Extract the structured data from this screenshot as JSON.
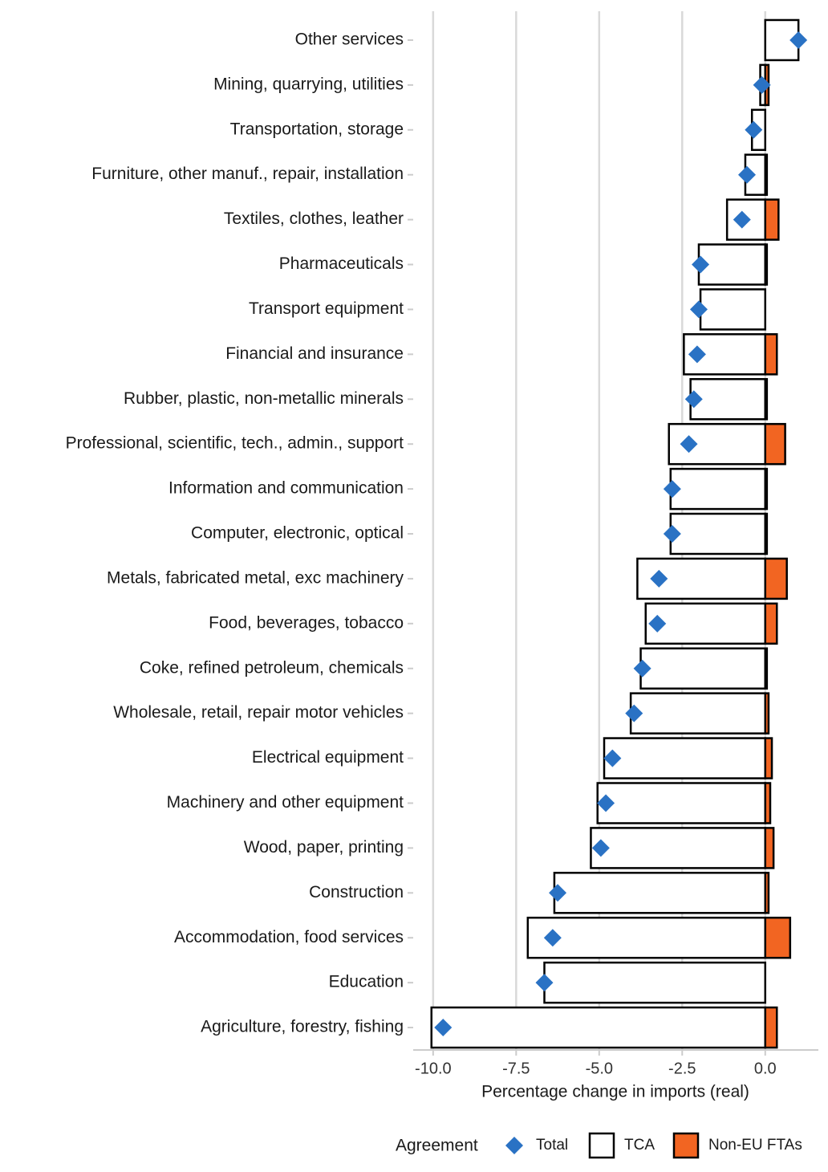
{
  "chart_data": {
    "type": "bar",
    "x_label": "Percentage change in imports (real)",
    "legend_title": "Agreement",
    "categories": [
      "Other services",
      "Mining, quarrying, utilities",
      "Transportation, storage",
      "Furniture, other manuf., repair, installation",
      "Textiles, clothes, leather",
      "Pharmaceuticals",
      "Transport equipment",
      "Financial and insurance",
      "Rubber, plastic, non-metallic minerals",
      "Professional, scientific, tech., admin., support",
      "Information and communication",
      "Computer, electronic, optical",
      "Metals, fabricated metal, exc machinery",
      "Food, beverages, tobacco",
      "Coke, refined petroleum, chemicals",
      "Wholesale, retail, repair motor vehicles",
      "Electrical equipment",
      "Machinery and other equipment",
      "Wood, paper, printing",
      "Construction",
      "Accommodation, food services",
      "Education",
      "Agriculture, forestry, fishing"
    ],
    "series": [
      {
        "name": "Total",
        "type": "point",
        "color": "#2a72c4",
        "values": [
          1.0,
          -0.1,
          -0.35,
          -0.55,
          -0.7,
          -1.95,
          -2.0,
          -2.05,
          -2.15,
          -2.3,
          -2.8,
          -2.8,
          -3.2,
          -3.25,
          -3.7,
          -3.95,
          -4.6,
          -4.8,
          -4.95,
          -6.25,
          -6.4,
          -6.65,
          -9.7
        ]
      },
      {
        "name": "TCA",
        "type": "bar",
        "color": "#ffffff",
        "values": [
          1.0,
          -0.15,
          -0.4,
          -0.6,
          -1.15,
          -2.0,
          -1.95,
          -2.45,
          -2.25,
          -2.9,
          -2.85,
          -2.85,
          -3.85,
          -3.6,
          -3.75,
          -4.05,
          -4.85,
          -5.05,
          -5.25,
          -6.35,
          -7.15,
          -6.65,
          -10.05
        ]
      },
      {
        "name": "Non-EU FTAs",
        "type": "bar",
        "color": "#f26522",
        "values": [
          0,
          0.1,
          0,
          0.05,
          0.4,
          0.05,
          0,
          0.35,
          0.05,
          0.6,
          0.05,
          0.05,
          0.65,
          0.35,
          0.05,
          0.1,
          0.2,
          0.15,
          0.25,
          0.1,
          0.75,
          0,
          0.35
        ]
      }
    ],
    "xlim": [
      -10.6,
      1.6
    ],
    "xticks": [
      {
        "value": -10,
        "label": "-10.0"
      },
      {
        "value": -7.5,
        "label": "-7.5"
      },
      {
        "value": -5,
        "label": "-5.0"
      },
      {
        "value": -2.5,
        "label": "-2.5"
      },
      {
        "value": 0,
        "label": "0.0"
      }
    ],
    "grid": true
  }
}
